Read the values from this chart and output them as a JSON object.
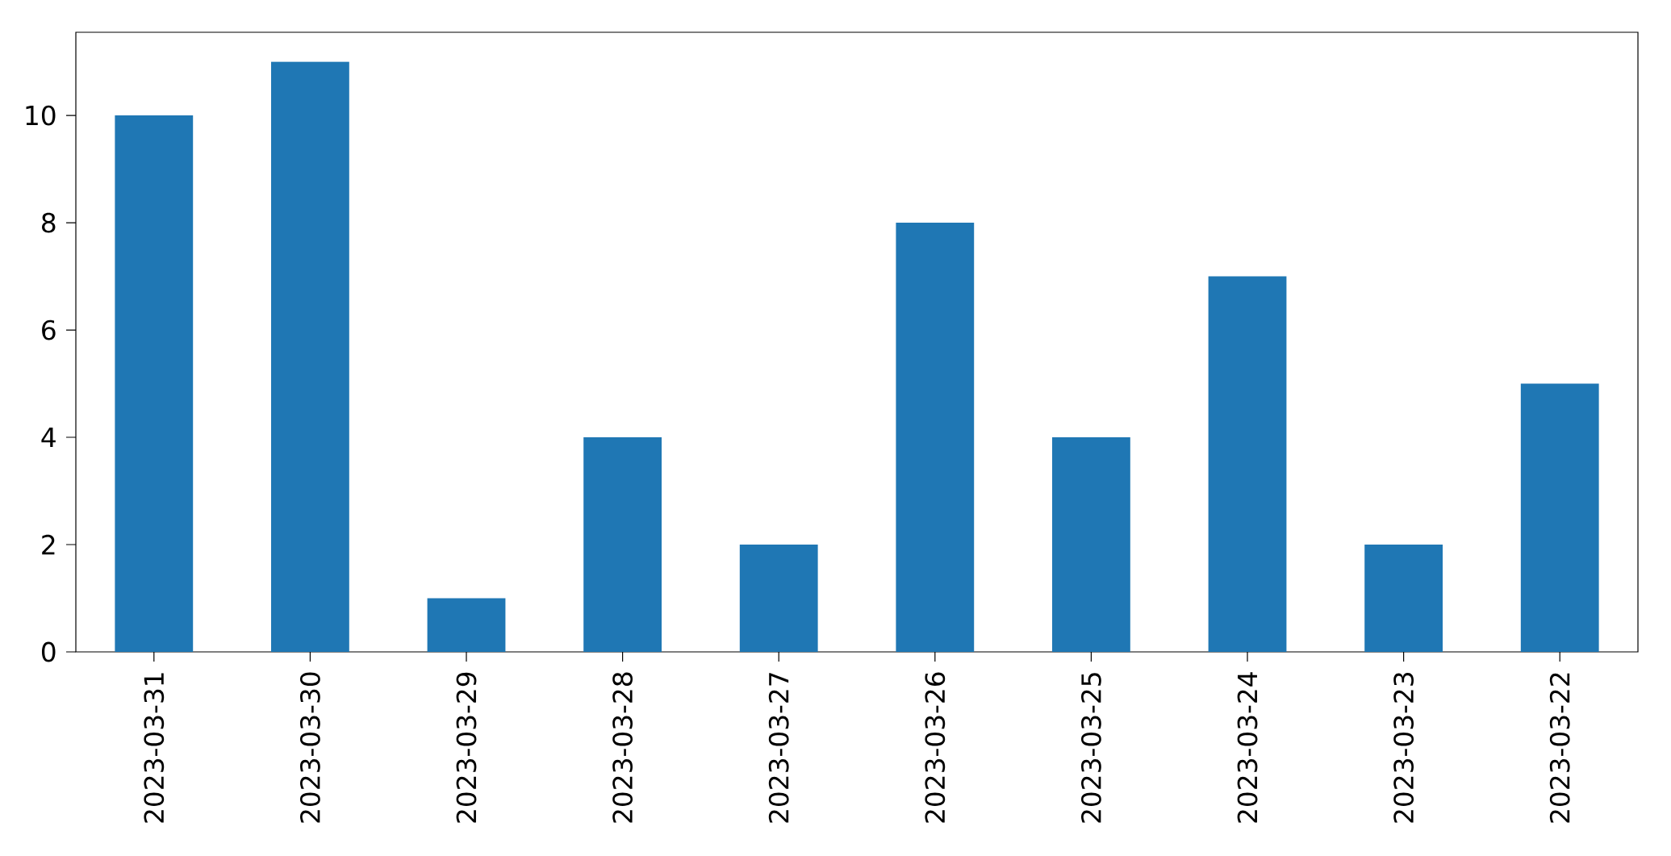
{
  "chart_data": {
    "type": "bar",
    "categories": [
      "2023-03-31",
      "2023-03-30",
      "2023-03-29",
      "2023-03-28",
      "2023-03-27",
      "2023-03-26",
      "2023-03-25",
      "2023-03-24",
      "2023-03-23",
      "2023-03-22"
    ],
    "values": [
      10,
      11,
      1,
      4,
      2,
      8,
      4,
      7,
      2,
      5
    ],
    "color": "#1f77b4",
    "ylim": [
      0,
      11.55
    ],
    "yticks": [
      0,
      2,
      4,
      6,
      8,
      10
    ],
    "grid": false
  }
}
